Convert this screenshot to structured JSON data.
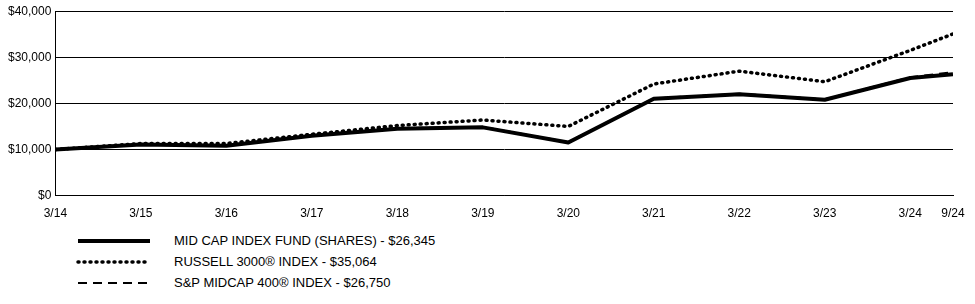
{
  "chart_data": {
    "type": "line",
    "x": [
      2014,
      2015,
      2016,
      2017,
      2018,
      2019,
      2020,
      2021,
      2022,
      2023,
      2024,
      2024.5
    ],
    "xlim": [
      2014,
      2024.5
    ],
    "xticks": [
      {
        "value": 2014,
        "label": "3/14"
      },
      {
        "value": 2015,
        "label": "3/15"
      },
      {
        "value": 2016,
        "label": "3/16"
      },
      {
        "value": 2017,
        "label": "3/17"
      },
      {
        "value": 2018,
        "label": "3/18"
      },
      {
        "value": 2019,
        "label": "3/19"
      },
      {
        "value": 2020,
        "label": "3/20"
      },
      {
        "value": 2021,
        "label": "3/21"
      },
      {
        "value": 2022,
        "label": "3/22"
      },
      {
        "value": 2023,
        "label": "3/23"
      },
      {
        "value": 2024,
        "label": "3/24"
      },
      {
        "value": 2024.5,
        "label": "9/24"
      }
    ],
    "ylim": [
      0,
      40000
    ],
    "yticks": [
      {
        "value": 0,
        "label": "$0"
      },
      {
        "value": 10000,
        "label": "$10,000"
      },
      {
        "value": 20000,
        "label": "$20,000"
      },
      {
        "value": 30000,
        "label": "$30,000"
      },
      {
        "value": 40000,
        "label": "$40,000"
      }
    ],
    "grid": true,
    "legend": "bottom-left",
    "series": [
      {
        "name": "MID CAP INDEX FUND (SHARES) - $26,345",
        "color": "#000000",
        "line_style": "solid",
        "values": [
          10000,
          11100,
          10800,
          13000,
          14500,
          14800,
          11500,
          21000,
          22000,
          20800,
          25500,
          26345
        ]
      },
      {
        "name": "RUSSELL 3000® INDEX - $35,064",
        "color": "#000000",
        "line_style": "dotted",
        "values": [
          10000,
          11300,
          11300,
          13300,
          15200,
          16400,
          15000,
          24200,
          27000,
          24700,
          31500,
          35064
        ]
      },
      {
        "name": "S&P MIDCAP 400® INDEX - $26,750",
        "color": "#000000",
        "line_style": "dashed",
        "values": [
          10000,
          11100,
          10900,
          13100,
          14600,
          14900,
          11600,
          21100,
          22100,
          20900,
          25700,
          26750
        ]
      }
    ]
  }
}
